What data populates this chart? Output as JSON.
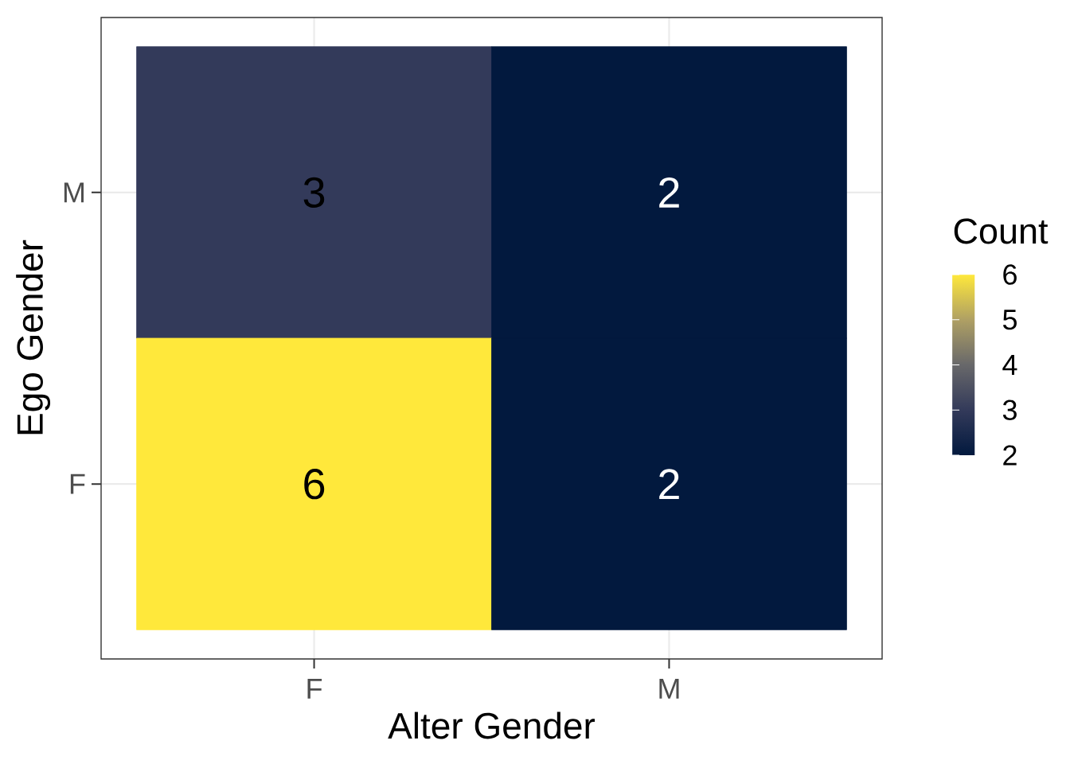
{
  "chart_data": {
    "type": "heatmap",
    "xlabel": "Alter Gender",
    "ylabel": "Ego Gender",
    "clabel": "Count",
    "categories": [
      "F",
      "M"
    ],
    "y_categories": [
      "M",
      "F"
    ],
    "cells": [
      [
        3,
        2
      ],
      [
        6,
        2
      ]
    ],
    "clim": [
      2,
      6
    ],
    "cticks": [
      2,
      3,
      4,
      5,
      6
    ],
    "data_labels": true,
    "grid": true
  }
}
